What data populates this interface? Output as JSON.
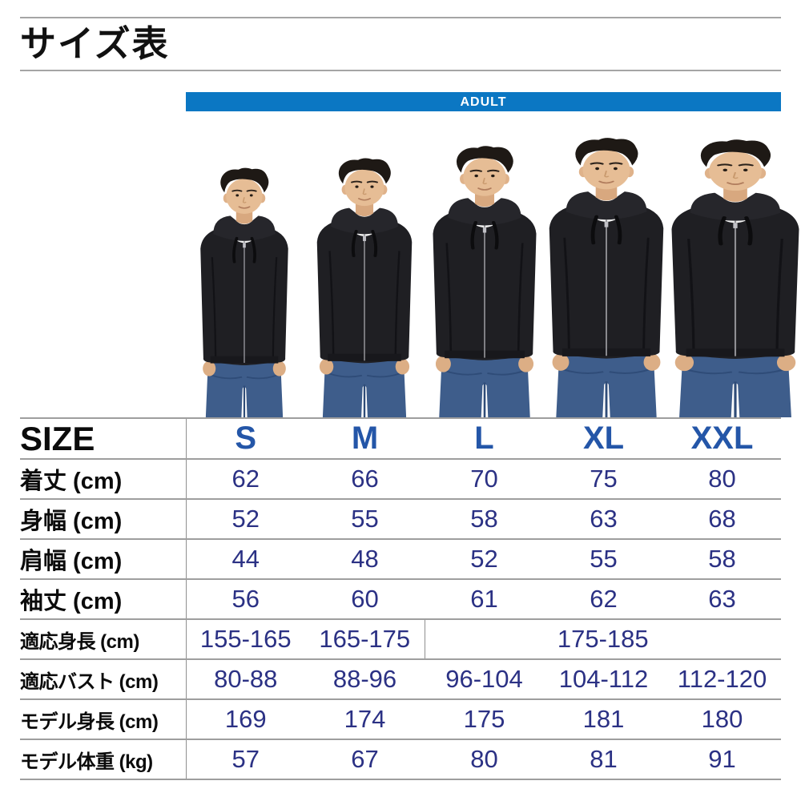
{
  "page": {
    "title": "サイズ表"
  },
  "banner": {
    "label": "ADULT",
    "color": "#0b77c3"
  },
  "colors": {
    "accent_blue": "#0b77c3",
    "size_header_blue": "#2456a8",
    "value_navy": "#2b3184"
  },
  "photo": {
    "models": [
      {
        "size": "S"
      },
      {
        "size": "M"
      },
      {
        "size": "L"
      },
      {
        "size": "XL"
      },
      {
        "size": "XXL"
      }
    ]
  },
  "table": {
    "corner_label": "SIZE",
    "columns": [
      "S",
      "M",
      "L",
      "XL",
      "XXL"
    ],
    "rows": [
      {
        "label": "着丈 (cm)",
        "cells": [
          {
            "text": "62"
          },
          {
            "text": "66"
          },
          {
            "text": "70"
          },
          {
            "text": "75"
          },
          {
            "text": "80"
          }
        ]
      },
      {
        "label": "身幅 (cm)",
        "cells": [
          {
            "text": "52"
          },
          {
            "text": "55"
          },
          {
            "text": "58"
          },
          {
            "text": "63"
          },
          {
            "text": "68"
          }
        ]
      },
      {
        "label": "肩幅 (cm)",
        "cells": [
          {
            "text": "44"
          },
          {
            "text": "48"
          },
          {
            "text": "52"
          },
          {
            "text": "55"
          },
          {
            "text": "58"
          }
        ]
      },
      {
        "label": "袖丈 (cm)",
        "cells": [
          {
            "text": "56"
          },
          {
            "text": "60"
          },
          {
            "text": "61"
          },
          {
            "text": "62"
          },
          {
            "text": "63"
          }
        ]
      },
      {
        "label": "適応身長 (cm)",
        "cells": [
          {
            "text": "155-165"
          },
          {
            "text": "165-175",
            "divider": true
          },
          {
            "text": "175-185",
            "span": 3
          }
        ]
      },
      {
        "label": "適応バスト (cm)",
        "cells": [
          {
            "text": "80-88"
          },
          {
            "text": "88-96"
          },
          {
            "text": "96-104"
          },
          {
            "text": "104-112"
          },
          {
            "text": "112-120"
          }
        ]
      },
      {
        "label": "モデル身長 (cm)",
        "cells": [
          {
            "text": "169"
          },
          {
            "text": "174"
          },
          {
            "text": "175"
          },
          {
            "text": "181"
          },
          {
            "text": "180"
          }
        ]
      },
      {
        "label": "モデル体重 (kg)",
        "cells": [
          {
            "text": "57"
          },
          {
            "text": "67"
          },
          {
            "text": "80"
          },
          {
            "text": "81"
          },
          {
            "text": "91"
          }
        ]
      }
    ]
  }
}
